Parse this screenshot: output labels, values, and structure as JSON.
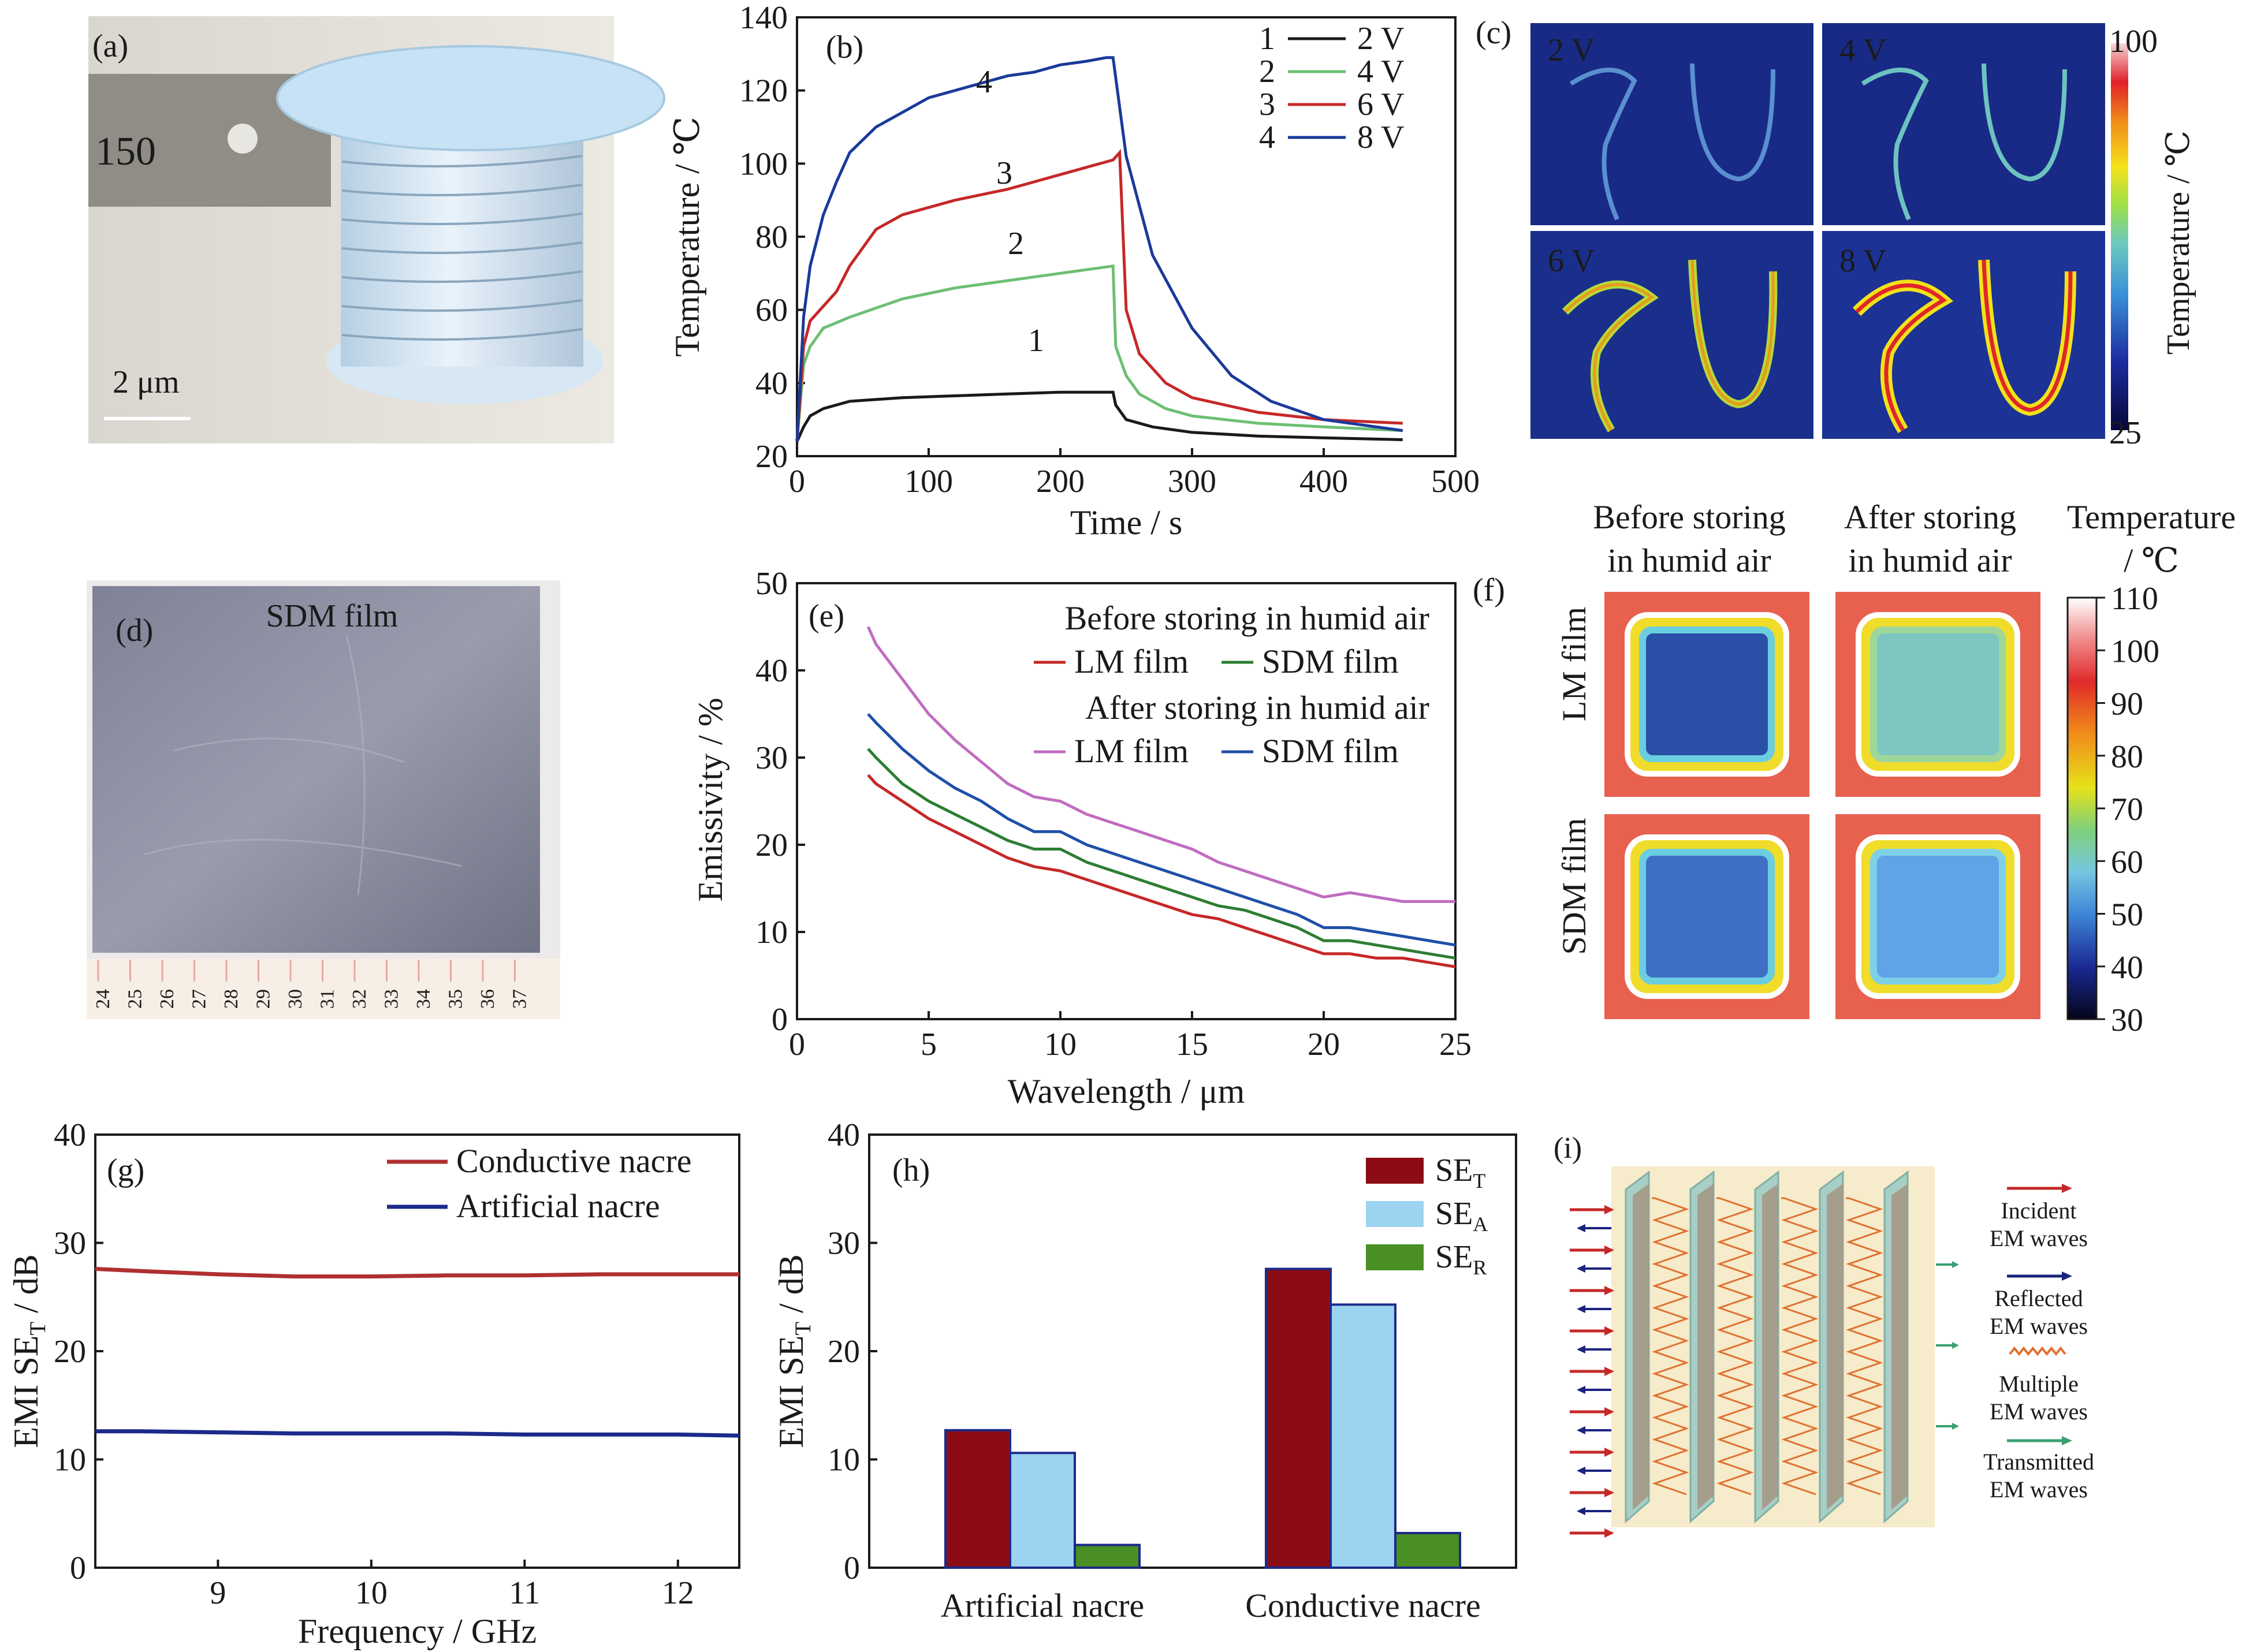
{
  "panels": {
    "a": {
      "label": "(a)",
      "scale_text": "2 μm",
      "ruler_text": "150"
    },
    "c": {
      "label": "(c)",
      "voltages": [
        "2 V",
        "4 V",
        "6 V",
        "8 V"
      ],
      "colorbar": {
        "max": "100",
        "min": "25",
        "title": "Temperature / ℃"
      }
    },
    "d": {
      "label": "(d)",
      "title": "SDM film",
      "ruler_ticks": [
        "24",
        "25",
        "26",
        "27",
        "28",
        "29",
        "30",
        "31",
        "32",
        "33",
        "34",
        "35",
        "36",
        "37"
      ]
    },
    "f": {
      "label": "(f)",
      "col_headers": [
        [
          "Before storing",
          "in humid air"
        ],
        [
          "After storing",
          "in humid air"
        ]
      ],
      "row_labels": [
        "LM film",
        "SDM film"
      ],
      "colorbar_title": [
        "Temperature",
        "/ ℃"
      ],
      "colorbar_ticks": [
        "110",
        "100",
        "90",
        "80",
        "70",
        "60",
        "50",
        "40",
        "30"
      ]
    },
    "i": {
      "label": "(i)",
      "legend": [
        [
          "Incident",
          "EM waves"
        ],
        [
          "Reflected",
          "EM waves"
        ],
        [
          "Multiple",
          "EM waves"
        ],
        [
          "Transmitted",
          "EM waves"
        ]
      ]
    }
  },
  "colors": {
    "black": "#1a1a1a",
    "green": "#6dbf73",
    "red": "#c62828",
    "blue": "#1a237e",
    "purple": "#c06cc0",
    "dkgreen": "#2e7d32",
    "dkblue": "#1f4fa8",
    "maroon": "#8b0c15",
    "lightblue": "#9cd3f0",
    "bargreen": "#4a8f23",
    "nacre_red": "#b03030",
    "nacre_blue": "#1c2a8a"
  },
  "chart_data": [
    {
      "id": "b",
      "label": "(b)",
      "type": "line",
      "xlabel": "Time / s",
      "ylabel": "Temperature / ℃",
      "xlim": [
        0,
        500
      ],
      "ylim": [
        20,
        140
      ],
      "xticks": [
        "0",
        "100",
        "200",
        "300",
        "400",
        "500"
      ],
      "yticks": [
        "20",
        "40",
        "60",
        "80",
        "100",
        "120",
        "140"
      ],
      "legend": [
        {
          "num": "1",
          "text": "2 V",
          "color": "#1a1a1a"
        },
        {
          "num": "2",
          "text": "4 V",
          "color": "#6dbf73"
        },
        {
          "num": "3",
          "text": "6 V",
          "color": "#c62828"
        },
        {
          "num": "4",
          "text": "8 V",
          "color": "#1a3a9a"
        }
      ],
      "series": [
        {
          "name": "2 V",
          "color": "#1a1a1a",
          "tag": "1",
          "x": [
            0,
            5,
            10,
            20,
            40,
            80,
            120,
            160,
            200,
            240,
            242,
            250,
            270,
            300,
            350,
            400,
            460
          ],
          "y": [
            24,
            28,
            31,
            33,
            35,
            36,
            36.5,
            37,
            37.5,
            37.5,
            34,
            30,
            28,
            26.5,
            25.5,
            25,
            24.5
          ]
        },
        {
          "name": "4 V",
          "color": "#6dbf73",
          "tag": "2",
          "x": [
            0,
            5,
            10,
            20,
            40,
            80,
            120,
            160,
            200,
            240,
            242,
            250,
            260,
            280,
            300,
            350,
            400,
            460
          ],
          "y": [
            24,
            45,
            50,
            55,
            58,
            63,
            66,
            68,
            70,
            72,
            50,
            42,
            37,
            33,
            31,
            29,
            28,
            27
          ]
        },
        {
          "name": "6 V",
          "color": "#c62828",
          "tag": "3",
          "x": [
            0,
            5,
            10,
            20,
            30,
            40,
            60,
            80,
            120,
            160,
            200,
            240,
            245,
            250,
            260,
            280,
            300,
            350,
            400,
            460
          ],
          "y": [
            24,
            50,
            57,
            61,
            65,
            72,
            82,
            86,
            90,
            93,
            97,
            101,
            103,
            60,
            48,
            40,
            36,
            32,
            30,
            29
          ]
        },
        {
          "name": "8 V",
          "color": "#1a3a9a",
          "tag": "4",
          "x": [
            0,
            5,
            10,
            20,
            30,
            40,
            60,
            80,
            100,
            120,
            140,
            160,
            180,
            200,
            220,
            235,
            240,
            250,
            270,
            300,
            330,
            360,
            400,
            460
          ],
          "y": [
            24,
            58,
            72,
            86,
            95,
            103,
            110,
            114,
            118,
            120,
            122,
            124,
            125,
            127,
            128,
            129,
            129,
            102,
            75,
            55,
            42,
            35,
            30,
            27
          ]
        }
      ]
    },
    {
      "id": "e",
      "label": "(e)",
      "type": "line",
      "xlabel": "Wavelength / μm",
      "ylabel": "Emissivity / %",
      "xlim": [
        0,
        25
      ],
      "ylim": [
        0,
        50
      ],
      "xticks": [
        "0",
        "5",
        "10",
        "15",
        "20",
        "25"
      ],
      "yticks": [
        "0",
        "10",
        "20",
        "30",
        "40",
        "50"
      ],
      "legend_before": "Before storing in humid air",
      "legend_after": "After storing in humid air",
      "legend_items": [
        {
          "text": "LM film",
          "color": "#c62828"
        },
        {
          "text": "SDM film",
          "color": "#2e7d32"
        },
        {
          "text": "LM film",
          "color": "#c06cc0"
        },
        {
          "text": "SDM film",
          "color": "#1f4fa8"
        }
      ],
      "series": [
        {
          "name": "LM film (before)",
          "color": "#c62828",
          "x": [
            2.7,
            3,
            4,
            5,
            6,
            7,
            8,
            9,
            10,
            11,
            12,
            13,
            14,
            15,
            16,
            17,
            18,
            19,
            20,
            21,
            22,
            23,
            24,
            25
          ],
          "y": [
            28,
            27,
            25,
            23,
            21.5,
            20,
            18.5,
            17.5,
            17,
            16,
            15,
            14,
            13,
            12,
            11.5,
            10.5,
            9.5,
            8.5,
            7.5,
            7.5,
            7,
            7,
            6.5,
            6
          ]
        },
        {
          "name": "SDM film (before)",
          "color": "#2e7d32",
          "x": [
            2.7,
            3,
            4,
            5,
            6,
            7,
            8,
            9,
            10,
            11,
            12,
            13,
            14,
            15,
            16,
            17,
            18,
            19,
            20,
            21,
            22,
            23,
            24,
            25
          ],
          "y": [
            31,
            30,
            27,
            25,
            23.5,
            22,
            20.5,
            19.5,
            19.5,
            18,
            17,
            16,
            15,
            14,
            13,
            12.5,
            11.5,
            10.5,
            9,
            9,
            8.5,
            8,
            7.5,
            7
          ]
        },
        {
          "name": "LM film (after)",
          "color": "#c06cc0",
          "x": [
            2.7,
            3,
            4,
            5,
            6,
            7,
            8,
            9,
            10,
            11,
            12,
            13,
            14,
            15,
            16,
            17,
            18,
            19,
            20,
            21,
            22,
            23,
            24,
            25
          ],
          "y": [
            45,
            43,
            39,
            35,
            32,
            29.5,
            27,
            25.5,
            25,
            23.5,
            22.5,
            21.5,
            20.5,
            19.5,
            18,
            17,
            16,
            15,
            14,
            14.5,
            14,
            13.5,
            13.5,
            13.5
          ]
        },
        {
          "name": "SDM film (after)",
          "color": "#1f4fa8",
          "x": [
            2.7,
            3,
            4,
            5,
            6,
            7,
            8,
            9,
            10,
            11,
            12,
            13,
            14,
            15,
            16,
            17,
            18,
            19,
            20,
            21,
            22,
            23,
            24,
            25
          ],
          "y": [
            35,
            34,
            31,
            28.5,
            26.5,
            25,
            23,
            21.5,
            21.5,
            20,
            19,
            18,
            17,
            16,
            15,
            14,
            13,
            12,
            10.5,
            10.5,
            10,
            9.5,
            9,
            8.5
          ]
        }
      ]
    },
    {
      "id": "g",
      "label": "(g)",
      "type": "line",
      "xlabel": "Frequency / GHz",
      "ylabel": "EMI SE_T / dB",
      "xlim": [
        8.2,
        12.4
      ],
      "ylim": [
        0,
        40
      ],
      "xticks": [
        "9",
        "10",
        "11",
        "12"
      ],
      "yticks": [
        "0",
        "10",
        "20",
        "30",
        "40"
      ],
      "series": [
        {
          "name": "Conductive nacre",
          "color": "#b03030",
          "x": [
            8.2,
            8.5,
            9,
            9.5,
            10,
            10.5,
            11,
            11.5,
            12,
            12.4
          ],
          "y": [
            27.6,
            27.4,
            27.1,
            26.9,
            26.9,
            27.0,
            27.0,
            27.1,
            27.1,
            27.1
          ]
        },
        {
          "name": "Artificial nacre",
          "color": "#1c2a8a",
          "x": [
            8.2,
            8.5,
            9,
            9.5,
            10,
            10.5,
            11,
            11.5,
            12,
            12.4
          ],
          "y": [
            12.6,
            12.6,
            12.5,
            12.4,
            12.4,
            12.4,
            12.3,
            12.3,
            12.3,
            12.2
          ]
        }
      ]
    },
    {
      "id": "h",
      "label": "(h)",
      "type": "bar",
      "ylabel": "EMI SE_T / dB",
      "ylim": [
        0,
        40
      ],
      "yticks": [
        "0",
        "10",
        "20",
        "30",
        "40"
      ],
      "categories": [
        "Artificial nacre",
        "Conductive nacre"
      ],
      "series": [
        {
          "name": "SE_T",
          "base": "SE",
          "sub": "T",
          "color": "#8b0c15",
          "values": [
            12.7,
            27.6
          ]
        },
        {
          "name": "SE_A",
          "base": "SE",
          "sub": "A",
          "color": "#9cd3f0",
          "values": [
            10.6,
            24.3
          ]
        },
        {
          "name": "SE_R",
          "base": "SE",
          "sub": "R",
          "color": "#4a8f23",
          "values": [
            2.1,
            3.2
          ]
        }
      ]
    }
  ]
}
